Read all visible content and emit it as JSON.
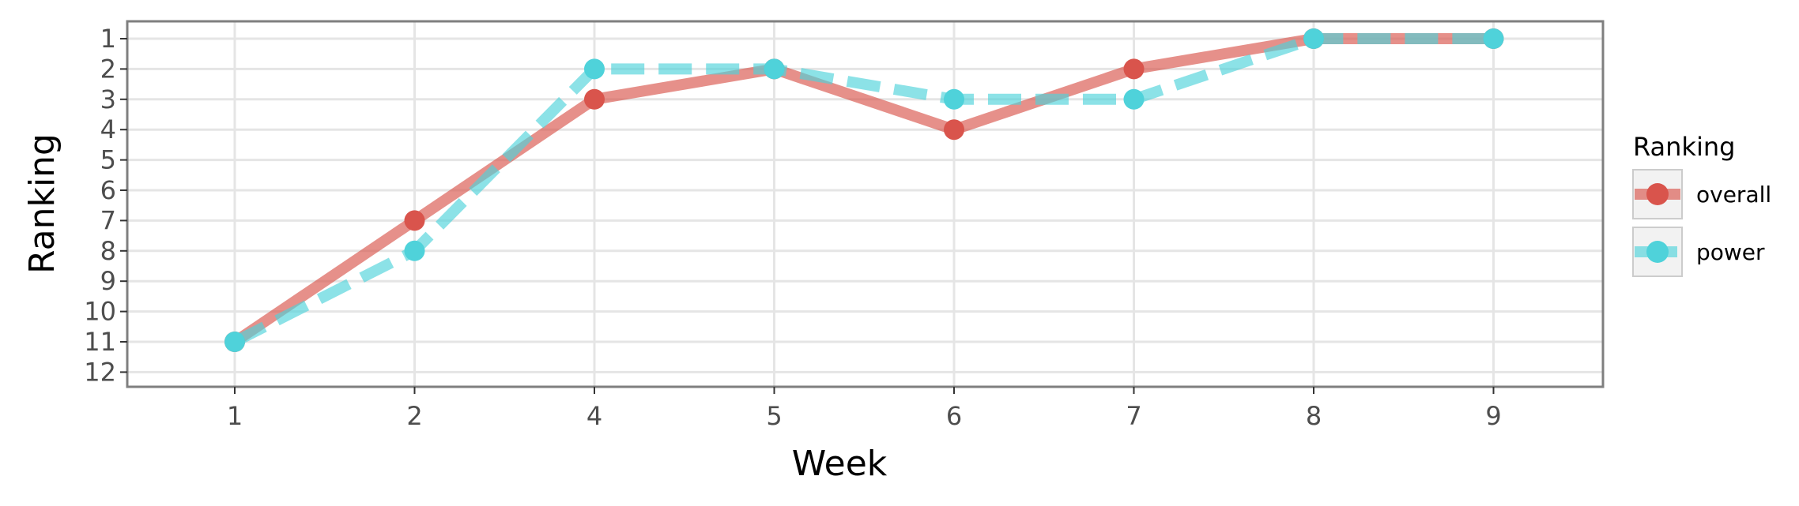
{
  "chart_data": {
    "type": "line",
    "categories": [
      "1",
      "2",
      "4",
      "5",
      "6",
      "7",
      "8",
      "9"
    ],
    "xlabel": "Week",
    "ylabel": "Ranking",
    "y_ticks": [
      "1",
      "2",
      "3",
      "4",
      "5",
      "6",
      "7",
      "8",
      "9",
      "10",
      "11",
      "12"
    ],
    "ylim": [
      1,
      12
    ],
    "y_reversed": true,
    "grid": true,
    "legend": {
      "title": "Ranking",
      "placement": "right"
    },
    "series": [
      {
        "name": "overall",
        "values": [
          11,
          7,
          3,
          2,
          4,
          2,
          1,
          1
        ],
        "color": "#d9544c",
        "line": "solid"
      },
      {
        "name": "power",
        "values": [
          11,
          8,
          2,
          2,
          3,
          3,
          1,
          1
        ],
        "color": "#4fd2da",
        "line": "dashed"
      }
    ]
  }
}
